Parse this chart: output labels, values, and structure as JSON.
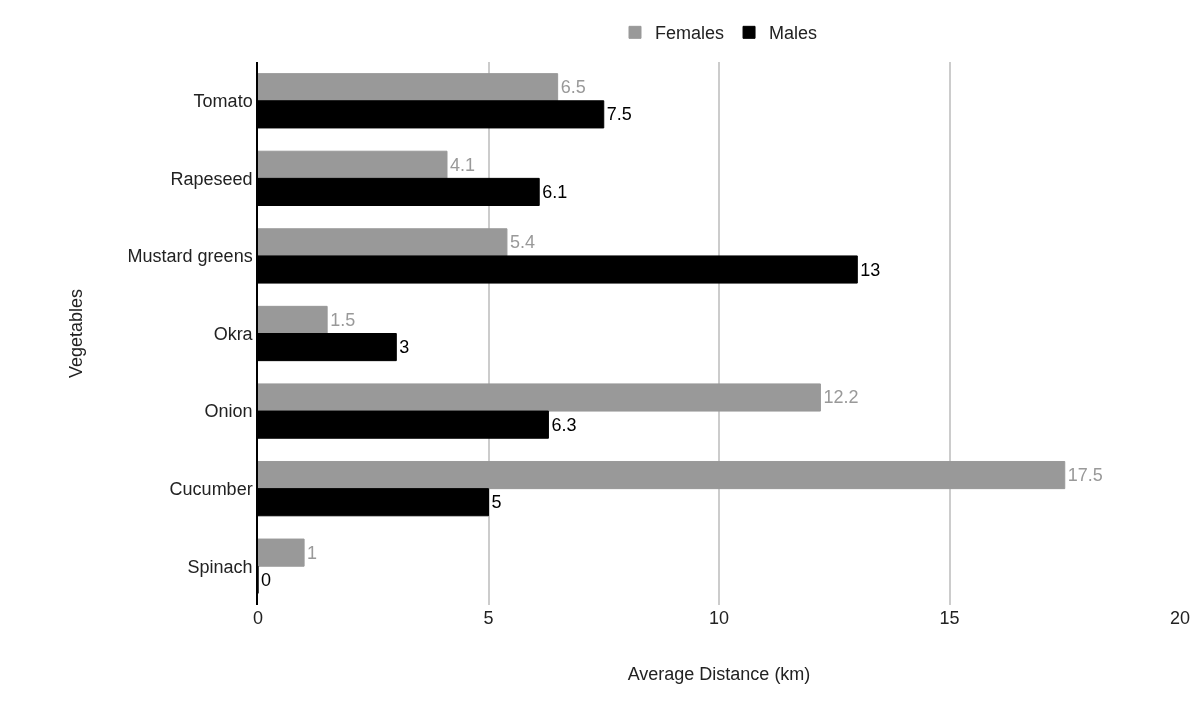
{
  "chart_data": {
    "type": "bar",
    "orientation": "horizontal",
    "xlabel": "Average Distance (km)",
    "ylabel": "Vegetables",
    "categories": [
      "Tomato",
      "Rapeseed",
      "Mustard greens",
      "Okra",
      "Onion",
      "Cucumber",
      "Spinach"
    ],
    "series": [
      {
        "name": "Females",
        "color": "#999999",
        "values": [
          6.5,
          4.1,
          5.4,
          1.5,
          12.2,
          17.5,
          1
        ]
      },
      {
        "name": "Males",
        "color": "#000000",
        "values": [
          7.5,
          6.1,
          13,
          3,
          6.3,
          5,
          0
        ]
      }
    ],
    "xlim": [
      0,
      20
    ],
    "xticks": [
      0,
      5,
      10,
      15,
      20
    ],
    "grid": "x",
    "legend": "top",
    "data_labels": true
  }
}
